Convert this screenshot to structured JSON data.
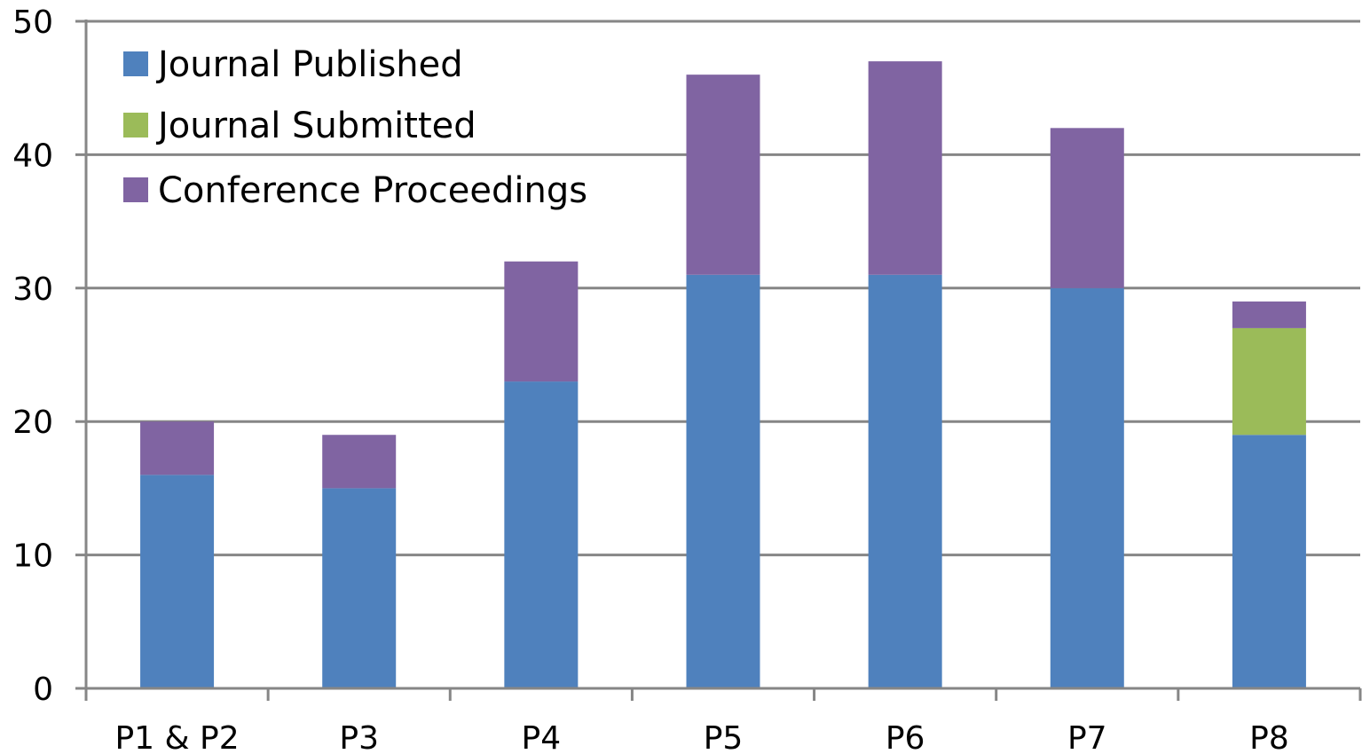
{
  "chart_data": {
    "type": "bar",
    "stacked": true,
    "categories": [
      "P1 & P2",
      "P3",
      "P4",
      "P5",
      "P6",
      "P7",
      "P8"
    ],
    "series": [
      {
        "name": "Journal Published",
        "color": "#4F81BD",
        "values": [
          16,
          15,
          23,
          31,
          31,
          30,
          19
        ]
      },
      {
        "name": "Journal Submitted",
        "color": "#9BBB59",
        "values": [
          0,
          0,
          0,
          0,
          0,
          0,
          8
        ]
      },
      {
        "name": "Conference Proceedings",
        "color": "#8064A2",
        "values": [
          4,
          4,
          9,
          15,
          16,
          12,
          2
        ]
      }
    ],
    "ylim": [
      0,
      50
    ],
    "yticks": [
      0,
      10,
      20,
      30,
      40,
      50
    ],
    "grid": true,
    "legend_position": "top-left"
  }
}
